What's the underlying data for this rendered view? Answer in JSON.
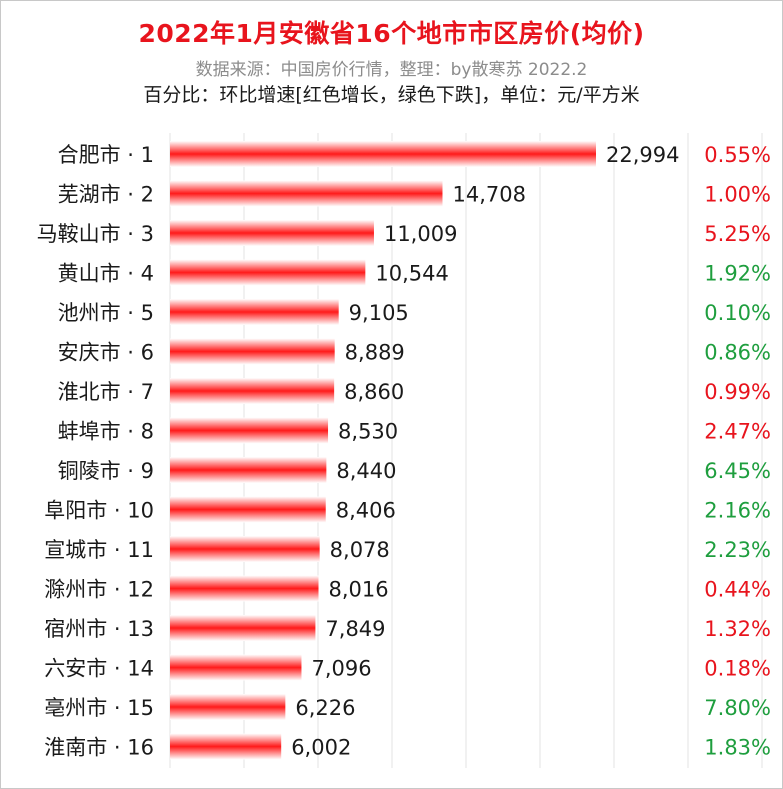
{
  "header": {
    "title": "2022年1月安徽省16个地市市区房价(均价)",
    "subtitle": "数据来源：中国房价行情，整理：by散寒苏 2022.2",
    "note": "百分比：环比增速[红色增长，绿色下跌]，单位：元/平方米"
  },
  "colors": {
    "bar": "#ff1a1a",
    "increase": "#e8141d",
    "decrease": "#1e9e3e",
    "title": "#e8141d"
  },
  "chart_data": {
    "type": "bar",
    "orientation": "horizontal",
    "categories": [
      "合肥市 · 1",
      "芜湖市 · 2",
      "马鞍山市 · 3",
      "黄山市 · 4",
      "池州市 · 5",
      "安庆市 · 6",
      "淮北市 · 7",
      "蚌埠市 · 8",
      "铜陵市 · 9",
      "阜阳市 · 10",
      "宣城市 · 11",
      "滁州市 · 12",
      "宿州市 · 13",
      "六安市 · 14",
      "亳州市 · 15",
      "淮南市 · 16"
    ],
    "values": [
      22994,
      14708,
      11009,
      10544,
      9105,
      8889,
      8860,
      8530,
      8440,
      8406,
      8078,
      8016,
      7849,
      7096,
      6226,
      6002
    ],
    "value_labels": [
      "22,994",
      "14,708",
      "11,009",
      "10,544",
      "9,105",
      "8,889",
      "8,860",
      "8,530",
      "8,440",
      "8,406",
      "8,078",
      "8,016",
      "7,849",
      "7,096",
      "6,226",
      "6,002"
    ],
    "mom_change": [
      "0.55%",
      "1.00%",
      "5.25%",
      "1.92%",
      "0.10%",
      "0.86%",
      "0.99%",
      "2.47%",
      "6.45%",
      "2.16%",
      "2.23%",
      "0.44%",
      "1.32%",
      "0.18%",
      "7.80%",
      "1.83%"
    ],
    "mom_direction": [
      "up",
      "up",
      "up",
      "down",
      "down",
      "down",
      "up",
      "up",
      "down",
      "down",
      "down",
      "up",
      "up",
      "up",
      "down",
      "down"
    ],
    "xlim": [
      0,
      23000
    ],
    "grid": true
  }
}
